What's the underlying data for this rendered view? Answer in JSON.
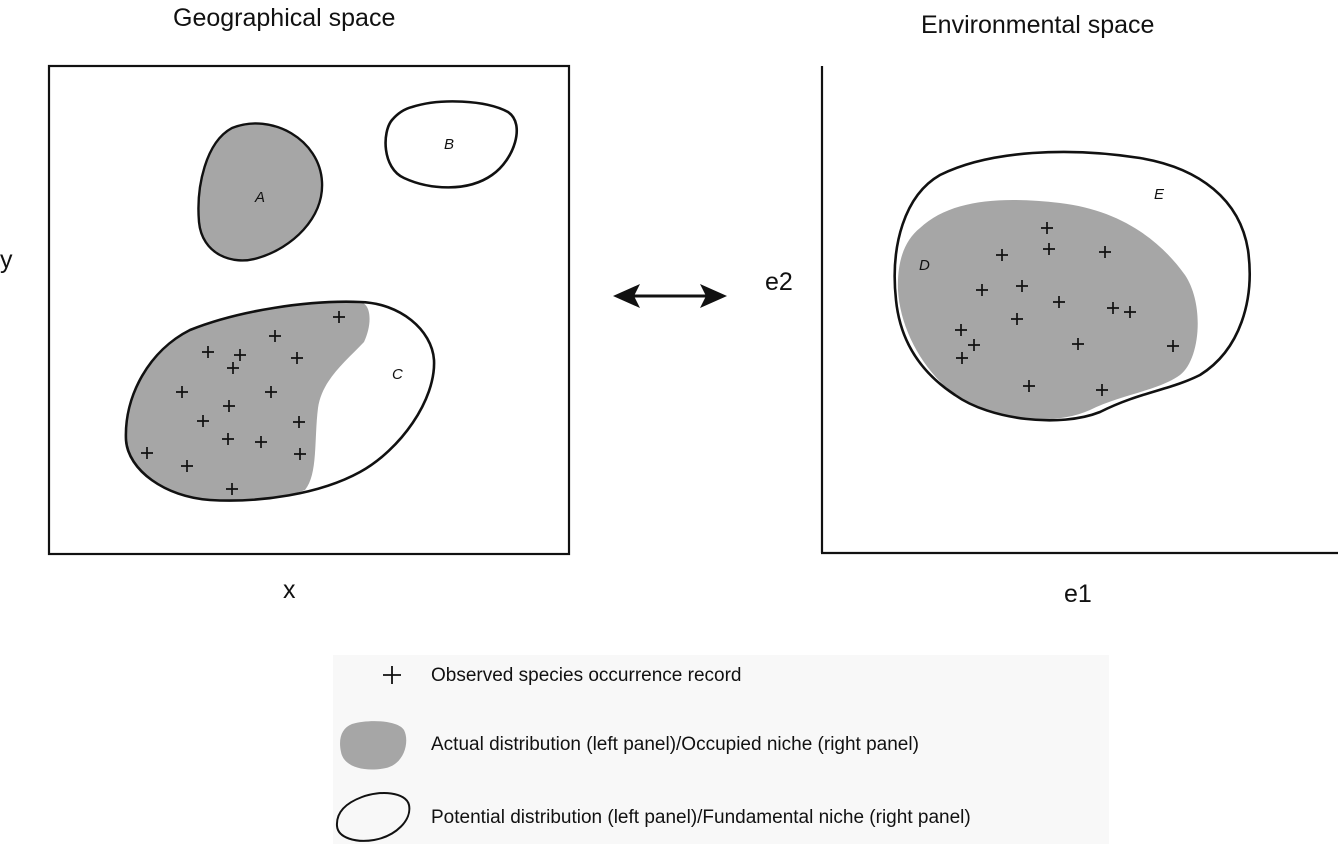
{
  "panels": {
    "left": {
      "title": "Geographical space",
      "xlabel": "x",
      "ylabel": "y"
    },
    "right": {
      "title": "Environmental space",
      "xlabel": "e1",
      "ylabel": "e2"
    }
  },
  "regions": {
    "A": "A",
    "B": "B",
    "C": "C",
    "D": "D",
    "E": "E"
  },
  "legend": {
    "occurrence": "Observed species occurrence record",
    "actual": "Actual distribution (left panel)/Occupied niche (right panel)",
    "potential": "Potential distribution (left panel)/Fundamental niche (right panel)"
  },
  "colors": {
    "fill": "#a6a6a6",
    "stroke": "#111111",
    "legend_bg": "#f8f8f8"
  },
  "arrow": "double-headed-arrow"
}
